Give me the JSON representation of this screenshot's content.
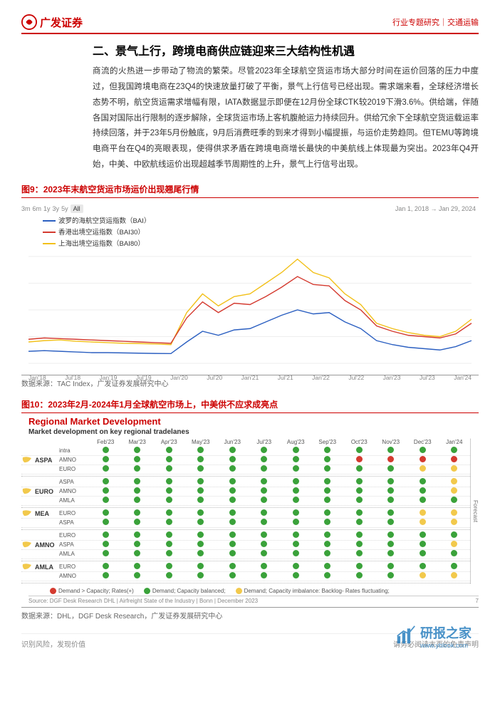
{
  "header": {
    "logo_text": "广发证券",
    "right": "行业专题研究｜交通运输"
  },
  "section_title": "二、景气上行，跨境电商供应链迎来三大结构性机遇",
  "body": "商流的火热进一步带动了物流的繁荣。尽管2023年全球航空货运市场大部分时间在运价回落的压力中度过，但我国跨境电商在23Q4的快速放量打破了平衡，景气上行信号已经出现。需求端来看，全球经济增长态势不明，航空货运需求增幅有限，IATA数据显示即便在12月份全球CTK较2019下滑3.6%。供给端，伴随各国对国际出行限制的逐步解除，全球货运市场上客机腹舱运力持续回升。供给冗余下全球航空货运载运率持续回落，并于23年5月份触底，9月后消费旺季的到来才得到小幅提振，与运价走势趋同。但TEMU等跨境电商平台在Q4的亮眼表现，使得供求矛盾在跨境电商增长最快的中美航线上体现最为突出。2023年Q4开始，中美、中欧航线运价出现超越季节周期性的上升，景气上行信号出现。",
  "fig9": {
    "title_num": "图9：",
    "title": "2023年末航空货运市场运价出现翘尾行情",
    "range_btns": [
      "3m",
      "6m",
      "1y",
      "3y",
      "5y"
    ],
    "range_active": "All",
    "date_lbl": "Jan 1, 2018 → Jan 29, 2024",
    "legend": [
      {
        "label": "波罗的海航空货运指数（BAI）",
        "color": "#2b5fc1"
      },
      {
        "label": "香港出境空运指数（BAI30）",
        "color": "#d43a2f"
      },
      {
        "label": "上海出境空运指数（BAI80）",
        "color": "#f2c019"
      }
    ],
    "ylim": [
      1000,
      9000
    ],
    "ytick_step": 2000,
    "x_labels": [
      "Jan'18",
      "Jul'18",
      "Jan'19",
      "Jul'19",
      "Jan'20",
      "Jul'20",
      "Jan'21",
      "Jul'21",
      "Jan'22",
      "Jul'22",
      "Jan'23",
      "Jul'23",
      "Jan'24"
    ],
    "series": {
      "bai": [
        1900,
        1950,
        1900,
        1850,
        1800,
        1800,
        1780,
        1760,
        1740,
        1730,
        2600,
        3400,
        3100,
        3500,
        3600,
        4100,
        4600,
        5000,
        4700,
        4800,
        4100,
        3600,
        2700,
        2400,
        2200,
        2100,
        2000,
        2250,
        2700
      ],
      "bai30": [
        2800,
        2900,
        2850,
        2800,
        2750,
        2700,
        2650,
        2600,
        2550,
        2500,
        4400,
        5600,
        4800,
        5500,
        5400,
        6000,
        6700,
        7500,
        6900,
        6800,
        5700,
        5000,
        3800,
        3400,
        3100,
        3000,
        2900,
        3200,
        4000
      ],
      "bai80": [
        2600,
        2700,
        2750,
        2650,
        2600,
        2550,
        2500,
        2480,
        2450,
        2400,
        4800,
        6200,
        5300,
        6000,
        6200,
        7000,
        7800,
        8800,
        7800,
        7400,
        6200,
        5400,
        4000,
        3600,
        3300,
        3100,
        3000,
        3400,
        4300
      ]
    },
    "colors": {
      "bai": "#2b5fc1",
      "bai30": "#d43a2f",
      "bai80": "#f2c019"
    },
    "background": "#ffffff",
    "grid_color": "#eeeeee",
    "source": "数据来源：TAC Index，广发证券发展研究中心"
  },
  "fig10": {
    "title_num": "图10：",
    "title": "2023年2月-2024年1月全球航空市场上，中美供不应求成亮点",
    "panel_title": "Regional Market Development",
    "panel_sub": "Market development on key regional tradelanes",
    "months": [
      "Feb'23",
      "Mar'23",
      "Apr'23",
      "May'23",
      "Jun'23",
      "Jul'23",
      "Aug'23",
      "Sep'23",
      "Oct'23",
      "Nov'23",
      "Dec'23",
      "Jan'24"
    ],
    "color_map": {
      "g": "#3aa23a",
      "y": "#f2c94c",
      "r": "#d43a2f"
    },
    "regions": [
      {
        "name": "ASPA",
        "subs": [
          {
            "name": "intra",
            "dots": [
              "g",
              "g",
              "g",
              "g",
              "g",
              "g",
              "g",
              "g",
              "g",
              "g",
              "g",
              "g"
            ]
          },
          {
            "name": "AMNO",
            "dots": [
              "g",
              "g",
              "g",
              "g",
              "g",
              "g",
              "g",
              "g",
              "r",
              "r",
              "r",
              "r"
            ]
          },
          {
            "name": "EURO",
            "dots": [
              "g",
              "g",
              "g",
              "g",
              "g",
              "g",
              "g",
              "g",
              "g",
              "g",
              "y",
              "y"
            ]
          }
        ]
      },
      {
        "name": "EURO",
        "subs": [
          {
            "name": "ASPA",
            "dots": [
              "g",
              "g",
              "g",
              "g",
              "g",
              "g",
              "g",
              "g",
              "g",
              "g",
              "g",
              "y"
            ]
          },
          {
            "name": "AMNO",
            "dots": [
              "g",
              "g",
              "g",
              "g",
              "g",
              "g",
              "g",
              "g",
              "g",
              "g",
              "g",
              "y"
            ]
          },
          {
            "name": "AMLA",
            "dots": [
              "g",
              "g",
              "g",
              "g",
              "g",
              "g",
              "g",
              "g",
              "g",
              "g",
              "g",
              "g"
            ]
          }
        ]
      },
      {
        "name": "MEA",
        "subs": [
          {
            "name": "EURO",
            "dots": [
              "g",
              "g",
              "g",
              "g",
              "g",
              "g",
              "g",
              "g",
              "g",
              "g",
              "y",
              "y"
            ]
          },
          {
            "name": "ASPA",
            "dots": [
              "g",
              "g",
              "g",
              "g",
              "g",
              "g",
              "g",
              "g",
              "g",
              "g",
              "y",
              "y"
            ]
          }
        ]
      },
      {
        "name": "AMNO",
        "subs": [
          {
            "name": "EURO",
            "dots": [
              "g",
              "g",
              "g",
              "g",
              "g",
              "g",
              "g",
              "g",
              "g",
              "g",
              "g",
              "g"
            ]
          },
          {
            "name": "ASPA",
            "dots": [
              "g",
              "g",
              "g",
              "g",
              "g",
              "g",
              "g",
              "g",
              "g",
              "g",
              "g",
              "y"
            ]
          },
          {
            "name": "AMLA",
            "dots": [
              "g",
              "g",
              "g",
              "g",
              "g",
              "g",
              "g",
              "g",
              "g",
              "g",
              "g",
              "g"
            ]
          }
        ]
      },
      {
        "name": "AMLA",
        "subs": [
          {
            "name": "EURO",
            "dots": [
              "g",
              "g",
              "g",
              "g",
              "g",
              "g",
              "g",
              "g",
              "g",
              "g",
              "g",
              "g"
            ]
          },
          {
            "name": "AMNO",
            "dots": [
              "g",
              "g",
              "g",
              "g",
              "g",
              "g",
              "g",
              "g",
              "g",
              "g",
              "y",
              "y"
            ]
          }
        ]
      }
    ],
    "forecast_label": "Forecast",
    "legend": [
      {
        "c": "r",
        "t": "Demand > Capacity; Rates(+)"
      },
      {
        "c": "g",
        "t": "Demand; Capacity balanced;"
      },
      {
        "c": "y",
        "t": "Demand; Capacity imbalance: Backlog- Rates fluctuating;"
      }
    ],
    "panel_source": "Source: DGF Desk Research\nDHL | Airfreight State of the Industry | Bonn | December 2023",
    "panel_page": "7",
    "source": "数据来源：DHL，DGF Desk Research，广发证券发展研究中心"
  },
  "footer": {
    "left": "识别风险，发现价值",
    "right": "请务必阅读末页的免责声明"
  },
  "watermark": {
    "text": "研报之家",
    "sub": "www.yblook.com"
  }
}
